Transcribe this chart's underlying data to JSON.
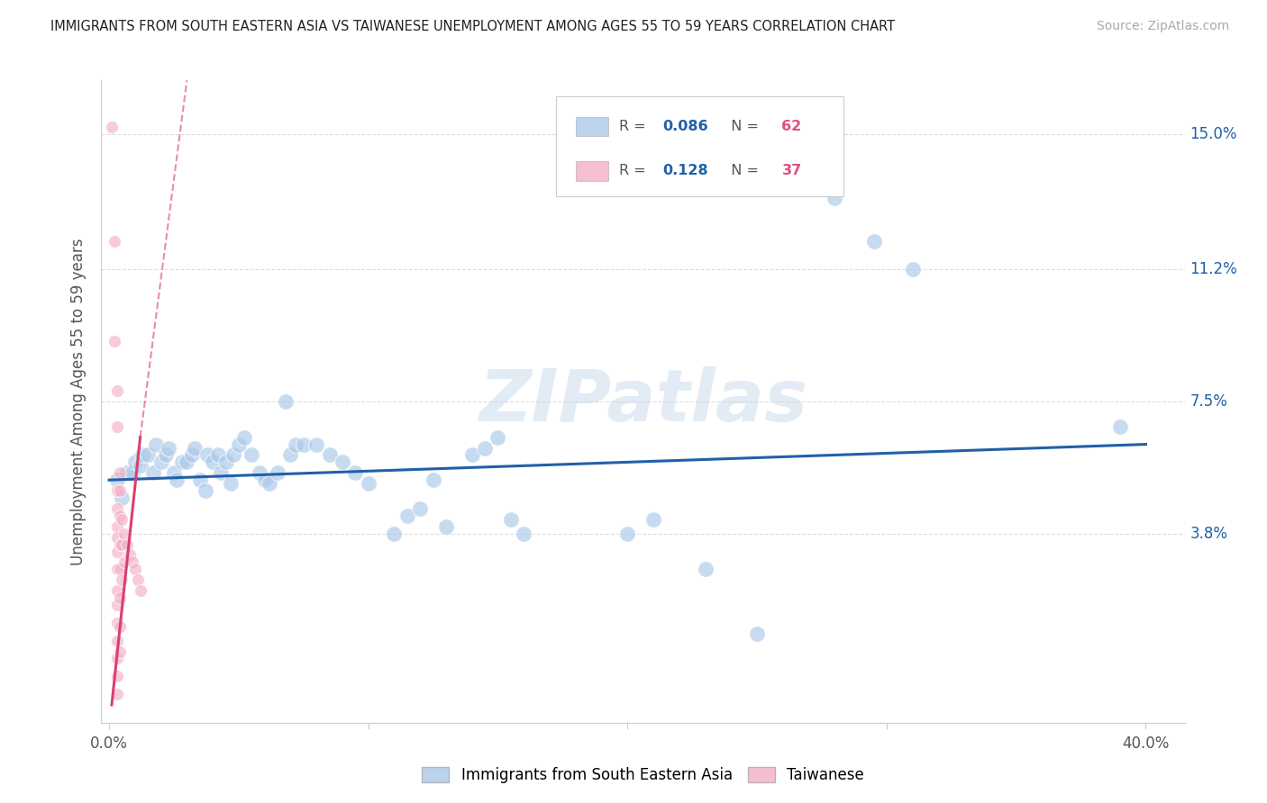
{
  "title": "IMMIGRANTS FROM SOUTH EASTERN ASIA VS TAIWANESE UNEMPLOYMENT AMONG AGES 55 TO 59 YEARS CORRELATION CHART",
  "source": "Source: ZipAtlas.com",
  "ylabel": "Unemployment Among Ages 55 to 59 years",
  "ytick_vals": [
    0.038,
    0.075,
    0.112,
    0.15
  ],
  "ytick_labels": [
    "3.8%",
    "7.5%",
    "11.2%",
    "15.0%"
  ],
  "xtick_vals": [
    0.0,
    0.1,
    0.2,
    0.3,
    0.4
  ],
  "xtick_labels": [
    "0.0%",
    "",
    "",
    "",
    "40.0%"
  ],
  "xlim": [
    -0.003,
    0.415
  ],
  "ylim": [
    -0.015,
    0.165
  ],
  "watermark": "ZIPatlas",
  "blue_color": "#aac8e8",
  "pink_color": "#f4afc5",
  "line_blue_color": "#2060a8",
  "line_pink_color": "#d84070",
  "blue_R": "0.086",
  "blue_N": "62",
  "pink_R": "0.128",
  "pink_N": "37",
  "blue_label": "Immigrants from South Eastern Asia",
  "pink_label": "Taiwanese",
  "blue_scatter": [
    [
      0.003,
      0.053
    ],
    [
      0.005,
      0.048
    ],
    [
      0.007,
      0.055
    ],
    [
      0.009,
      0.055
    ],
    [
      0.01,
      0.058
    ],
    [
      0.012,
      0.057
    ],
    [
      0.013,
      0.06
    ],
    [
      0.015,
      0.06
    ],
    [
      0.017,
      0.055
    ],
    [
      0.018,
      0.063
    ],
    [
      0.02,
      0.058
    ],
    [
      0.022,
      0.06
    ],
    [
      0.023,
      0.062
    ],
    [
      0.025,
      0.055
    ],
    [
      0.026,
      0.053
    ],
    [
      0.028,
      0.058
    ],
    [
      0.03,
      0.058
    ],
    [
      0.032,
      0.06
    ],
    [
      0.033,
      0.062
    ],
    [
      0.035,
      0.053
    ],
    [
      0.037,
      0.05
    ],
    [
      0.038,
      0.06
    ],
    [
      0.04,
      0.058
    ],
    [
      0.042,
      0.06
    ],
    [
      0.043,
      0.055
    ],
    [
      0.045,
      0.058
    ],
    [
      0.047,
      0.052
    ],
    [
      0.048,
      0.06
    ],
    [
      0.05,
      0.063
    ],
    [
      0.052,
      0.065
    ],
    [
      0.055,
      0.06
    ],
    [
      0.058,
      0.055
    ],
    [
      0.06,
      0.053
    ],
    [
      0.062,
      0.052
    ],
    [
      0.065,
      0.055
    ],
    [
      0.068,
      0.075
    ],
    [
      0.07,
      0.06
    ],
    [
      0.072,
      0.063
    ],
    [
      0.075,
      0.063
    ],
    [
      0.08,
      0.063
    ],
    [
      0.085,
      0.06
    ],
    [
      0.09,
      0.058
    ],
    [
      0.095,
      0.055
    ],
    [
      0.1,
      0.052
    ],
    [
      0.11,
      0.038
    ],
    [
      0.115,
      0.043
    ],
    [
      0.12,
      0.045
    ],
    [
      0.125,
      0.053
    ],
    [
      0.13,
      0.04
    ],
    [
      0.14,
      0.06
    ],
    [
      0.145,
      0.062
    ],
    [
      0.15,
      0.065
    ],
    [
      0.155,
      0.042
    ],
    [
      0.16,
      0.038
    ],
    [
      0.2,
      0.038
    ],
    [
      0.21,
      0.042
    ],
    [
      0.23,
      0.028
    ],
    [
      0.25,
      0.01
    ],
    [
      0.28,
      0.132
    ],
    [
      0.295,
      0.12
    ],
    [
      0.31,
      0.112
    ],
    [
      0.39,
      0.068
    ]
  ],
  "pink_scatter": [
    [
      0.001,
      0.152
    ],
    [
      0.002,
      0.12
    ],
    [
      0.002,
      0.092
    ],
    [
      0.003,
      0.078
    ],
    [
      0.003,
      0.068
    ],
    [
      0.003,
      0.05
    ],
    [
      0.003,
      0.045
    ],
    [
      0.003,
      0.04
    ],
    [
      0.003,
      0.037
    ],
    [
      0.003,
      0.033
    ],
    [
      0.003,
      0.028
    ],
    [
      0.003,
      0.022
    ],
    [
      0.003,
      0.018
    ],
    [
      0.003,
      0.013
    ],
    [
      0.003,
      0.008
    ],
    [
      0.003,
      0.003
    ],
    [
      0.003,
      -0.002
    ],
    [
      0.003,
      -0.007
    ],
    [
      0.004,
      0.055
    ],
    [
      0.004,
      0.05
    ],
    [
      0.004,
      0.043
    ],
    [
      0.004,
      0.035
    ],
    [
      0.004,
      0.028
    ],
    [
      0.004,
      0.02
    ],
    [
      0.004,
      0.012
    ],
    [
      0.004,
      0.005
    ],
    [
      0.005,
      0.042
    ],
    [
      0.005,
      0.035
    ],
    [
      0.005,
      0.025
    ],
    [
      0.006,
      0.038
    ],
    [
      0.006,
      0.03
    ],
    [
      0.007,
      0.035
    ],
    [
      0.008,
      0.032
    ],
    [
      0.009,
      0.03
    ],
    [
      0.01,
      0.028
    ],
    [
      0.011,
      0.025
    ],
    [
      0.012,
      0.022
    ]
  ],
  "blue_line": [
    [
      0.0,
      0.053
    ],
    [
      0.4,
      0.063
    ]
  ],
  "pink_line_x1": 0.001,
  "pink_line_y1": -0.01,
  "pink_line_x2": 0.012,
  "pink_line_y2": 0.065,
  "pink_line_dash_x1": 0.012,
  "pink_line_dash_y1": 0.065,
  "pink_line_dash_x2": 0.03,
  "pink_line_dash_y2": 0.165
}
